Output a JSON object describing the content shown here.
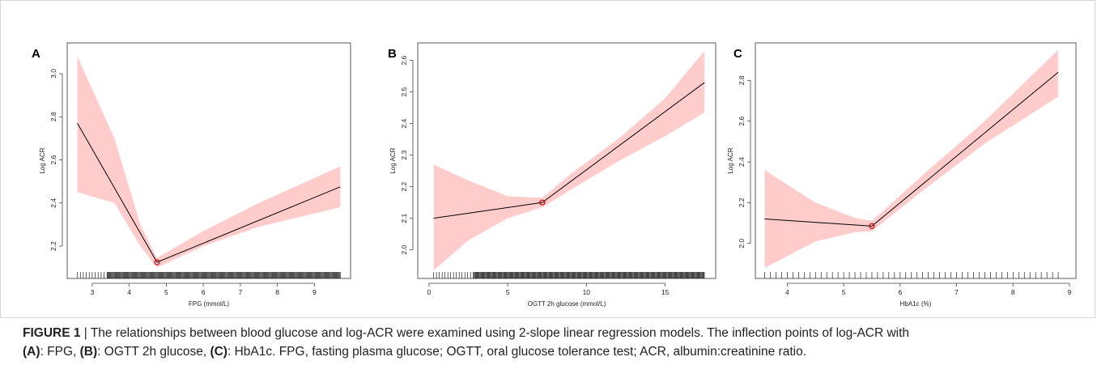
{
  "figure": {
    "caption": {
      "label": "FIGURE 1",
      "separator": " | ",
      "line1": "The relationships between blood glucose and log-ACR were examined using 2-slope linear regression models. The inflection points of log-ACR with",
      "a_tag": "(A)",
      "a_text": ": FPG, ",
      "b_tag": "(B)",
      "b_text": ": OGTT 2h glucose, ",
      "c_tag": "(C)",
      "c_text": ": HbA1c. FPG, fasting plasma glucose; OGTT, oral glucose tolerance test; ACR, albumin:creatinine ratio."
    }
  },
  "chart_data": [
    {
      "panel": "A",
      "type": "line",
      "xlabel": "FPG (mmol/L)",
      "ylabel": "Log ACR",
      "xlim": [
        2.5,
        9.8
      ],
      "ylim": [
        2.08,
        3.12
      ],
      "xticks": [
        3,
        4,
        5,
        6,
        7,
        8,
        9
      ],
      "yticks": [
        2.2,
        2.4,
        2.6,
        2.8,
        3.0
      ],
      "ytick_labels": [
        "2.2",
        "2.4",
        "2.6",
        "2.8",
        "3.0"
      ],
      "fit": {
        "x": [
          2.6,
          4.75,
          9.7
        ],
        "y": [
          2.77,
          2.125,
          2.475
        ]
      },
      "ci_upper": {
        "x": [
          2.6,
          3.6,
          4.3,
          4.75,
          6.0,
          7.5,
          9.7
        ],
        "y": [
          3.08,
          2.7,
          2.3,
          2.145,
          2.27,
          2.4,
          2.57
        ]
      },
      "ci_lower": {
        "x": [
          2.6,
          3.6,
          4.3,
          4.75,
          6.0,
          7.5,
          9.7
        ],
        "y": [
          2.45,
          2.4,
          2.2,
          2.1,
          2.2,
          2.29,
          2.38
        ]
      },
      "inflection": {
        "x": 4.75,
        "y": 2.125
      },
      "rug": {
        "start": 2.6,
        "end": 9.7,
        "step": 0.02,
        "sparse_until": 3.4
      }
    },
    {
      "panel": "B",
      "type": "line",
      "xlabel": "OGTT 2h glucose (mmol/L)",
      "ylabel": "Log ACR",
      "xlim": [
        -0.3,
        17.8
      ],
      "ylim": [
        1.93,
        2.64
      ],
      "xticks": [
        0,
        5,
        10,
        15
      ],
      "yticks": [
        2.0,
        2.1,
        2.2,
        2.3,
        2.4,
        2.5,
        2.6
      ],
      "ytick_labels": [
        "2.0",
        "2.1",
        "2.2",
        "2.3",
        "2.4",
        "2.5",
        "2.6"
      ],
      "fit": {
        "x": [
          0.3,
          7.2,
          17.5
        ],
        "y": [
          2.1,
          2.15,
          2.53
        ]
      },
      "ci_upper": {
        "x": [
          0.3,
          2.5,
          5.0,
          7.2,
          9.0,
          12.0,
          15.0,
          17.5
        ],
        "y": [
          2.27,
          2.22,
          2.17,
          2.165,
          2.24,
          2.35,
          2.48,
          2.63
        ]
      },
      "ci_lower": {
        "x": [
          0.3,
          2.5,
          5.0,
          7.2,
          9.0,
          12.0,
          15.0,
          17.5
        ],
        "y": [
          1.935,
          2.03,
          2.1,
          2.135,
          2.19,
          2.28,
          2.36,
          2.435
        ]
      },
      "inflection": {
        "x": 7.2,
        "y": 2.15
      },
      "rug": {
        "start": 0.3,
        "end": 17.5,
        "step": 0.045,
        "sparse_until": 2.8
      }
    },
    {
      "panel": "C",
      "type": "line",
      "xlabel": "HbA1c (%)",
      "ylabel": "Log ACR",
      "xlim": [
        3.55,
        9.0
      ],
      "ylim": [
        1.86,
        2.96
      ],
      "xticks": [
        4,
        5,
        6,
        7,
        8,
        9
      ],
      "yticks": [
        2.0,
        2.2,
        2.4,
        2.6,
        2.8
      ],
      "ytick_labels": [
        "2.0",
        "2.2",
        "2.4",
        "2.6",
        "2.8"
      ],
      "fit": {
        "x": [
          3.6,
          5.5,
          8.8
        ],
        "y": [
          2.12,
          2.085,
          2.84
        ]
      },
      "ci_upper": {
        "x": [
          3.6,
          4.5,
          5.2,
          5.5,
          6.5,
          7.5,
          8.8
        ],
        "y": [
          2.36,
          2.2,
          2.125,
          2.11,
          2.36,
          2.6,
          2.95
        ]
      },
      "ci_lower": {
        "x": [
          3.6,
          4.5,
          5.2,
          5.5,
          6.5,
          7.5,
          8.8
        ],
        "y": [
          1.88,
          2.01,
          2.055,
          2.06,
          2.28,
          2.49,
          2.72
        ]
      },
      "inflection": {
        "x": 5.5,
        "y": 2.085
      },
      "rug": {
        "start": 3.6,
        "end": 8.8,
        "step": 0.1,
        "sparse_until": 3.6
      }
    }
  ]
}
